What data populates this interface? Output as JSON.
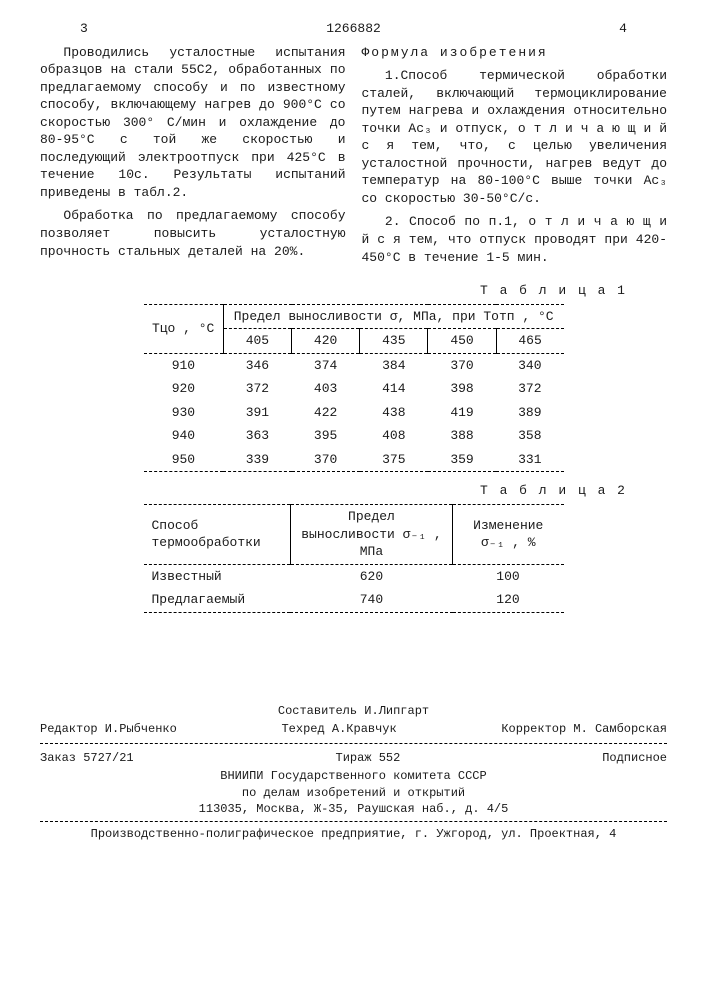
{
  "page_left_no": "3",
  "patent_no": "1266882",
  "page_right_no": "4",
  "left_col": {
    "p1": "Проводились усталостные испытания образцов на стали 55С2, обработанных по предлагаемому способу и по известному способу, включающему нагрев до 900°C со скоростью 300° С/мин и охлаждение до 80-95°C с той же скоростью и последующий электроотпуск при 425°C в течение 10с. Результаты испытаний приведены в табл.2.",
    "p2": "Обработка по предлагаемому способу позволяет повысить усталостную прочность стальных деталей на 20%."
  },
  "right_col": {
    "h": "Формула изобретения",
    "p1": "1.Способ термической обработки сталей, включающий термоциклирование путем нагрева и охлаждения относительно точки Ac₃ и отпуск, о т л и ч а ю щ и й с я  тем, что, с целью увеличения усталостной прочности, нагрев ведут до температур на 80-100°C выше точки Ac₃ со скоростью 30-50°C/с.",
    "p2": "2. Способ по п.1, о т л и ч а ю щ и й с я  тем, что отпуск проводят при 420-450°C в течение 1-5 мин."
  },
  "table1": {
    "caption": "Т а б л и ц а 1",
    "head_col1": "Тцо , °C",
    "head_span": "Предел выносливости  σ, МПа, при Тотп , °C",
    "sub_cols": [
      "405",
      "420",
      "435",
      "450",
      "465"
    ],
    "rows": [
      [
        "910",
        "346",
        "374",
        "384",
        "370",
        "340"
      ],
      [
        "920",
        "372",
        "403",
        "414",
        "398",
        "372"
      ],
      [
        "930",
        "391",
        "422",
        "438",
        "419",
        "389"
      ],
      [
        "940",
        "363",
        "395",
        "408",
        "388",
        "358"
      ],
      [
        "950",
        "339",
        "370",
        "375",
        "359",
        "331"
      ]
    ]
  },
  "table2": {
    "caption": "Т а б л и ц а 2",
    "head1": "Способ термообработки",
    "head2": "Предел выносливости σ₋₁ , МПа",
    "head3": "Изменение σ₋₁ , %",
    "rows": [
      [
        "Известный",
        "620",
        "100"
      ],
      [
        "Предлагаемый",
        "740",
        "120"
      ]
    ]
  },
  "footer": {
    "compiler": "Составитель И.Липгарт",
    "editor": "Редактор И.Рыбченко",
    "techred": "Техред А.Кравчук",
    "corrector": "Корректор М. Самборская",
    "order": "Заказ 5727/21",
    "tirazh": "Тираж 552",
    "podpis": "Подписное",
    "org1": "ВНИИПИ Государственного комитета СССР",
    "org2": "по делам изобретений и открытий",
    "addr": "113035, Москва, Ж-35, Раушская наб., д. 4/5",
    "print": "Производственно-полиграфическое предприятие, г. Ужгород, ул. Проектная, 4"
  }
}
